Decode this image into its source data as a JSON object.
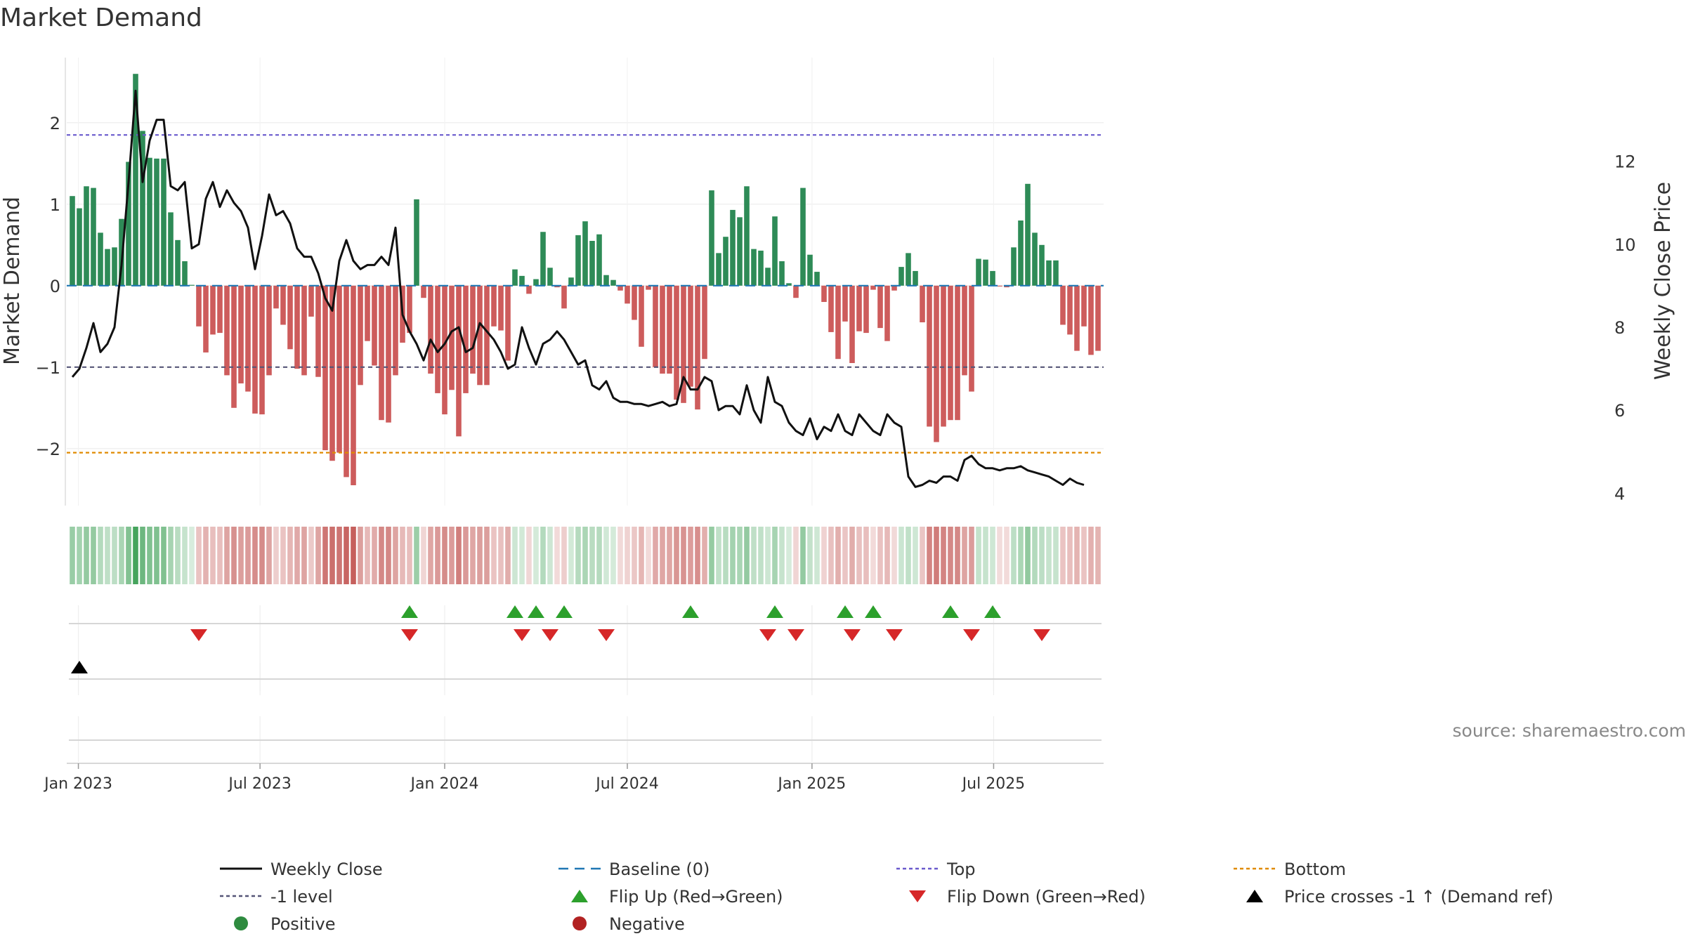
{
  "chart_data": {
    "type": "bar",
    "title": "Market Demand",
    "ylabel": "Market Demand",
    "y2label": "Weekly Close Price",
    "ylim": [
      -2.7,
      2.8
    ],
    "y2lim": [
      3.7,
      14.5
    ],
    "yticks": [
      -2,
      -1,
      0,
      1,
      2
    ],
    "ytick_labels": [
      "−2",
      "−1",
      "0",
      "1",
      "2"
    ],
    "y2ticks": [
      4,
      6,
      8,
      10,
      12
    ],
    "top_level": 1.85,
    "bottom_level": -2.05,
    "minus_one_level": -1,
    "week_start": "2022-12-26",
    "x_ticks": [
      {
        "label": "Jan 2023",
        "date": "2023-01-01"
      },
      {
        "label": "Jul 2023",
        "date": "2023-07-01"
      },
      {
        "label": "Jan 2024",
        "date": "2024-01-01"
      },
      {
        "label": "Jul 2024",
        "date": "2024-07-01"
      },
      {
        "label": "Jan 2025",
        "date": "2025-01-01"
      },
      {
        "label": "Jul 2025",
        "date": "2025-07-01"
      }
    ],
    "demand": [
      1.1,
      0.95,
      1.22,
      1.2,
      0.65,
      0.45,
      0.47,
      0.82,
      1.52,
      2.6,
      1.9,
      1.57,
      1.56,
      1.56,
      0.9,
      0.56,
      0.3,
      0.01,
      -0.5,
      -0.82,
      -0.6,
      -0.58,
      -1.1,
      -1.5,
      -1.2,
      -1.3,
      -1.57,
      -1.58,
      -1.1,
      -0.28,
      -0.48,
      -0.78,
      -1.02,
      -1.1,
      -0.38,
      -1.12,
      -2.02,
      -2.15,
      -2.05,
      -2.35,
      -2.45,
      -1.22,
      -0.68,
      -0.98,
      -1.65,
      -1.68,
      -1.1,
      -0.7,
      -0.58,
      1.06,
      -0.15,
      -1.08,
      -1.32,
      -1.58,
      -1.28,
      -1.85,
      -1.32,
      -1.08,
      -1.22,
      -1.22,
      -0.5,
      -0.55,
      -0.92,
      0.2,
      0.12,
      -0.1,
      0.08,
      0.66,
      0.22,
      -0.02,
      -0.28,
      0.1,
      0.62,
      0.79,
      0.55,
      0.63,
      0.13,
      0.07,
      -0.06,
      -0.22,
      -0.42,
      -0.75,
      -0.05,
      -1.0,
      -1.08,
      -1.08,
      -1.4,
      -1.44,
      -1.24,
      -1.52,
      -0.9,
      1.17,
      0.4,
      0.6,
      0.93,
      0.84,
      1.22,
      0.45,
      0.43,
      0.22,
      0.85,
      0.3,
      0.03,
      -0.15,
      1.2,
      0.38,
      0.17,
      -0.2,
      -0.57,
      -0.9,
      -0.44,
      -0.95,
      -0.56,
      -0.58,
      -0.05,
      -0.52,
      -0.68,
      -0.06,
      0.23,
      0.4,
      0.18,
      -0.45,
      -1.73,
      -1.92,
      -1.73,
      -1.65,
      -1.65,
      -1.1,
      -1.3,
      0.33,
      0.32,
      0.18,
      -0.01,
      -0.02,
      0.47,
      0.8,
      1.25,
      0.65,
      0.5,
      0.31,
      0.31,
      -0.48,
      -0.6,
      -0.8,
      -0.5,
      -0.85,
      -0.8
    ],
    "close": [
      6.8,
      7.0,
      7.5,
      8.1,
      7.4,
      7.6,
      8.0,
      9.5,
      11.5,
      13.7,
      11.5,
      12.5,
      13.0,
      13.0,
      11.4,
      11.3,
      11.5,
      9.9,
      10.0,
      11.1,
      11.5,
      10.9,
      11.3,
      11.0,
      10.8,
      10.4,
      9.4,
      10.2,
      11.2,
      10.7,
      10.8,
      10.5,
      9.9,
      9.7,
      9.7,
      9.3,
      8.7,
      8.4,
      9.6,
      10.1,
      9.6,
      9.4,
      9.5,
      9.5,
      9.7,
      9.5,
      10.4,
      8.3,
      7.9,
      7.6,
      7.2,
      7.7,
      7.4,
      7.6,
      7.9,
      8.0,
      7.4,
      7.5,
      8.1,
      7.9,
      7.7,
      7.4,
      7.0,
      7.1,
      8.0,
      7.5,
      7.1,
      7.6,
      7.7,
      7.9,
      7.7,
      7.4,
      7.1,
      7.2,
      6.6,
      6.5,
      6.7,
      6.3,
      6.2,
      6.2,
      6.15,
      6.15,
      6.1,
      6.15,
      6.2,
      6.1,
      6.15,
      6.8,
      6.5,
      6.5,
      6.8,
      6.7,
      6.0,
      6.1,
      6.1,
      5.9,
      6.6,
      6.0,
      5.7,
      6.8,
      6.2,
      6.1,
      5.7,
      5.5,
      5.4,
      5.8,
      5.3,
      5.6,
      5.5,
      5.9,
      5.5,
      5.4,
      5.9,
      5.7,
      5.5,
      5.4,
      5.9,
      5.7,
      5.6,
      4.4,
      4.15,
      4.2,
      4.3,
      4.25,
      4.4,
      4.4,
      4.3,
      4.8,
      4.9,
      4.7,
      4.6,
      4.6,
      4.55,
      4.6,
      4.6,
      4.65,
      4.55,
      4.5,
      4.45,
      4.4,
      4.3,
      4.2,
      4.35,
      4.25,
      4.2
    ],
    "flip_up_weeks": [
      48,
      63,
      66,
      70,
      88,
      100,
      110,
      114,
      125,
      131
    ],
    "flip_down_weeks": [
      18,
      48,
      64,
      68,
      76,
      99,
      103,
      111,
      117,
      128,
      138
    ],
    "price_cross_weeks": [
      1
    ],
    "legend": [
      {
        "label": "Weekly Close",
        "kind": "line",
        "color": "#111111"
      },
      {
        "label": "Baseline (0)",
        "kind": "dash",
        "color": "#1f77b4"
      },
      {
        "label": "Top",
        "kind": "dot",
        "color": "#6a5acd"
      },
      {
        "label": "Bottom",
        "kind": "dot",
        "color": "#e08a00"
      },
      {
        "label": "-1 level",
        "kind": "dot",
        "color": "#555577"
      },
      {
        "label": "Flip Up (Red→Green)",
        "kind": "tri-up",
        "color": "#2ca02c"
      },
      {
        "label": "Flip Down (Green→Red)",
        "kind": "tri-down",
        "color": "#d62728"
      },
      {
        "label": "Price crosses -1 ↑ (Demand ref)",
        "kind": "tri-up",
        "color": "#000000"
      },
      {
        "label": "Positive",
        "kind": "circle",
        "color": "#2e8b3f"
      },
      {
        "label": "Negative",
        "kind": "circle",
        "color": "#b22222"
      }
    ],
    "source": "source: sharemaestro.com"
  },
  "colors": {
    "positive": "#2e8b57",
    "negative": "#cd5c5c",
    "price_line": "#111111",
    "baseline": "#1f77b4",
    "top": "#6a5acd",
    "bottom": "#e08a00",
    "minus_one": "#555577",
    "flip_up": "#2ca02c",
    "flip_down": "#d62728"
  }
}
